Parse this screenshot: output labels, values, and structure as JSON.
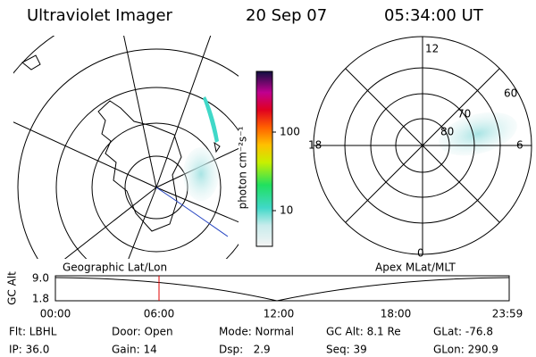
{
  "header": {
    "title": "Ultraviolet Imager",
    "date": "20 Sep 07",
    "time": "05:34:00 UT"
  },
  "colorbar": {
    "label": "photon cm⁻²s⁻¹",
    "ticks": [
      "100",
      "10"
    ]
  },
  "maps": {
    "left_label": "Geographic Lat/Lon",
    "right_label": "Apex MLat/MLT"
  },
  "polar_plot": {
    "mlt_labels": [
      "12",
      "18",
      "6",
      "0"
    ],
    "mlat_labels": [
      "60",
      "70",
      "80"
    ]
  },
  "altitude_plot": {
    "ylabel": "GC Alt",
    "yticks": [
      "9.0",
      "1.8"
    ],
    "xticks": [
      "00:00",
      "06:00",
      "12:00",
      "18:00",
      "23:59"
    ]
  },
  "info": {
    "rows": [
      [
        "Flt: LBHL",
        "Door: Open",
        "Mode: Normal",
        "GC Alt: 8.1 Re",
        "GLat: -76.8"
      ],
      [
        "IP: 36.0",
        "Gain: 14",
        "Dsp:   2.9",
        "Seq: 39",
        "GLon: 290.9"
      ]
    ]
  }
}
